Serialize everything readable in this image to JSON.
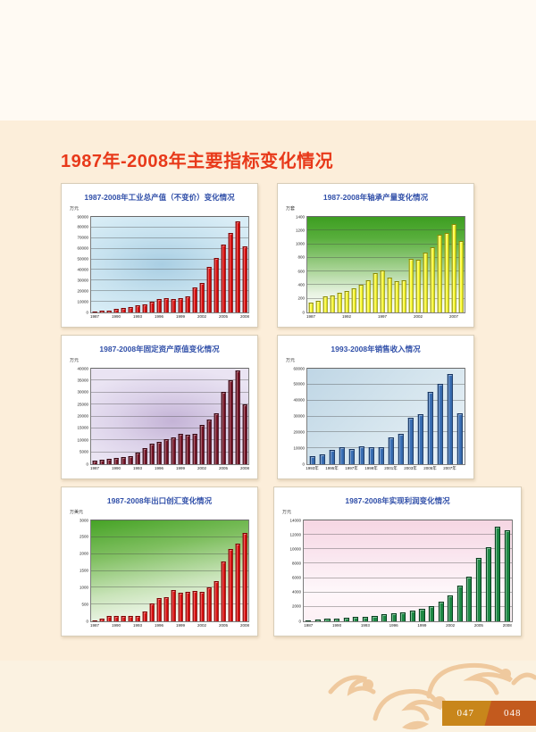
{
  "page": {
    "title": "1987年-2008年主要指标变化情况",
    "page_number_left": "047",
    "page_number_right": "048",
    "colors": {
      "title_red": "#E8391A",
      "chart_title_blue": "#2F4EA8",
      "page_top_bg": "#FFFAF3",
      "page_main_bg": "#FCEEDA",
      "page_bottom_bg": "#FBF2E1",
      "pattern_orange": "#EFC99E",
      "pagenum_left_bg": "#C8861B",
      "pagenum_right_bg": "#C35A1E"
    }
  },
  "chart_data": [
    {
      "type": "bar",
      "title": "1987-2008年工业总产值（不变价）变化情况",
      "ylabel": "万元",
      "categories": [
        "1987",
        "1988",
        "1989",
        "1990",
        "1991",
        "1992",
        "1993",
        "1994",
        "1995",
        "1996",
        "1997",
        "1998",
        "1999",
        "2000",
        "2001",
        "2002",
        "2003",
        "2004",
        "2005",
        "2006",
        "2007",
        "2008"
      ],
      "values": [
        1000,
        1500,
        2000,
        3400,
        4600,
        5400,
        6500,
        7900,
        10200,
        12500,
        13300,
        13000,
        13500,
        15300,
        23800,
        27500,
        43200,
        51600,
        64300,
        74600,
        85500,
        62400
      ],
      "ylim": [
        0,
        90000
      ],
      "ytick_step": 10000,
      "xtick_indices": [
        0,
        3,
        6,
        9,
        12,
        15,
        18,
        21
      ],
      "xtick_labels": [
        "1987",
        "1990",
        "1993",
        "1996",
        "1999",
        "2002",
        "2005",
        "2008"
      ],
      "grid": true,
      "legend": null,
      "bar_color": "#E01111",
      "bar_edge_color": "#7A0000"
    },
    {
      "type": "bar",
      "title": "1987-2008年轴承产量变化情况",
      "ylabel": "万套",
      "categories": [
        "1987",
        "1988",
        "1989",
        "1990",
        "1991",
        "1992",
        "1993",
        "1994",
        "1995",
        "1996",
        "1997",
        "1998",
        "1999",
        "2000",
        "2001",
        "2002",
        "2003",
        "2004",
        "2005",
        "2006",
        "2007",
        "2008"
      ],
      "values": [
        140,
        175,
        240,
        255,
        290,
        310,
        355,
        410,
        465,
        570,
        615,
        505,
        455,
        470,
        790,
        775,
        880,
        960,
        1140,
        1165,
        1290,
        1045
      ],
      "ylim": [
        0,
        1400
      ],
      "ytick_step": 200,
      "xtick_indices": [
        0,
        5,
        10,
        15,
        20
      ],
      "xtick_labels": [
        "1987",
        "1992",
        "1997",
        "2002",
        "2007"
      ],
      "grid": true,
      "legend": null,
      "bar_color": "#FFFF3C",
      "bar_edge_color": "#8A8A00"
    },
    {
      "type": "bar",
      "title": "1987-2008年固定资产原值变化情况",
      "ylabel": "万元",
      "categories": [
        "1987",
        "1988",
        "1989",
        "1990",
        "1991",
        "1992",
        "1993",
        "1994",
        "1995",
        "1996",
        "1997",
        "1998",
        "1999",
        "2000",
        "2001",
        "2002",
        "2003",
        "2004",
        "2005",
        "2006",
        "2007",
        "2008"
      ],
      "values": [
        1500,
        1800,
        2100,
        2500,
        2900,
        3400,
        4800,
        6600,
        8700,
        9300,
        10400,
        11300,
        12700,
        12400,
        12700,
        16600,
        18600,
        21200,
        30400,
        35000,
        39300,
        25100
      ],
      "ylim": [
        0,
        40000
      ],
      "ytick_step": 5000,
      "xtick_indices": [
        0,
        3,
        6,
        9,
        12,
        15,
        18,
        21
      ],
      "xtick_labels": [
        "1987",
        "1990",
        "1993",
        "1996",
        "1999",
        "2002",
        "2005",
        "2008"
      ],
      "grid": true,
      "legend": null,
      "bar_color": "#7A1528",
      "bar_edge_color": "#330510"
    },
    {
      "type": "bar",
      "title": "1993-2008年销售收入情况",
      "ylabel": "万元",
      "categories": [
        "1993",
        "1994",
        "1995",
        "1996",
        "1997",
        "1998",
        "1999",
        "2000",
        "2001",
        "2002",
        "2003",
        "2004",
        "2005",
        "2006",
        "2007",
        "2008"
      ],
      "values": [
        5200,
        6300,
        8800,
        10700,
        9600,
        11100,
        10600,
        10900,
        16700,
        19300,
        29400,
        31500,
        45700,
        50400,
        56600,
        32000
      ],
      "ylim": [
        0,
        60000
      ],
      "ytick_step": 10000,
      "xtick_indices": [
        0,
        2,
        4,
        6,
        8,
        10,
        12,
        14
      ],
      "xtick_labels": [
        "1993年",
        "1995年",
        "1997年",
        "1999年",
        "2001年",
        "2003年",
        "2005年",
        "2007年"
      ],
      "grid": true,
      "legend": null,
      "bar_color": "#3A6FB5",
      "bar_edge_color": "#16335E"
    },
    {
      "type": "bar",
      "title": "1987-2008年出口创汇变化情况",
      "ylabel": "万美元",
      "categories": [
        "1987",
        "1988",
        "1989",
        "1990",
        "1991",
        "1992",
        "1993",
        "1994",
        "1995",
        "1996",
        "1997",
        "1998",
        "1999",
        "2000",
        "2001",
        "2002",
        "2003",
        "2004",
        "2005",
        "2006",
        "2007",
        "2008"
      ],
      "values": [
        25,
        90,
        160,
        170,
        150,
        150,
        165,
        300,
        530,
        700,
        720,
        940,
        850,
        880,
        900,
        880,
        1020,
        1200,
        1780,
        2160,
        2300,
        2620
      ],
      "ylim": [
        0,
        3000
      ],
      "ytick_step": 500,
      "xtick_indices": [
        0,
        3,
        6,
        9,
        12,
        15,
        18,
        21
      ],
      "xtick_labels": [
        "1987",
        "1990",
        "1993",
        "1996",
        "1999",
        "2002",
        "2005",
        "2008"
      ],
      "grid": true,
      "legend": null,
      "bar_color": "#E01111",
      "bar_edge_color": "#7A0000"
    },
    {
      "type": "bar",
      "title": "1987-2008年实现利润变化情况",
      "ylabel": "万元",
      "categories": [
        "1987",
        "1988",
        "1989",
        "1990",
        "1991",
        "1992",
        "1993",
        "1994",
        "1995",
        "1996",
        "1997",
        "1998",
        "1999",
        "2000",
        "2001",
        "2002",
        "2003",
        "2004",
        "2005",
        "2006",
        "2007",
        "2008"
      ],
      "values": [
        180,
        280,
        330,
        400,
        500,
        580,
        680,
        800,
        950,
        1100,
        1250,
        1450,
        1750,
        2100,
        2700,
        3600,
        5000,
        6200,
        8800,
        10300,
        13100,
        12700
      ],
      "ylim": [
        0,
        14000
      ],
      "ytick_step": 2000,
      "xtick_indices": [
        0,
        3,
        6,
        9,
        12,
        15,
        18,
        21
      ],
      "xtick_labels": [
        "1987",
        "1990",
        "1993",
        "1996",
        "1999",
        "2002",
        "2005",
        "2008"
      ],
      "grid": true,
      "legend": null,
      "bar_color": "#1E8A45",
      "bar_edge_color": "#073D1D"
    }
  ]
}
